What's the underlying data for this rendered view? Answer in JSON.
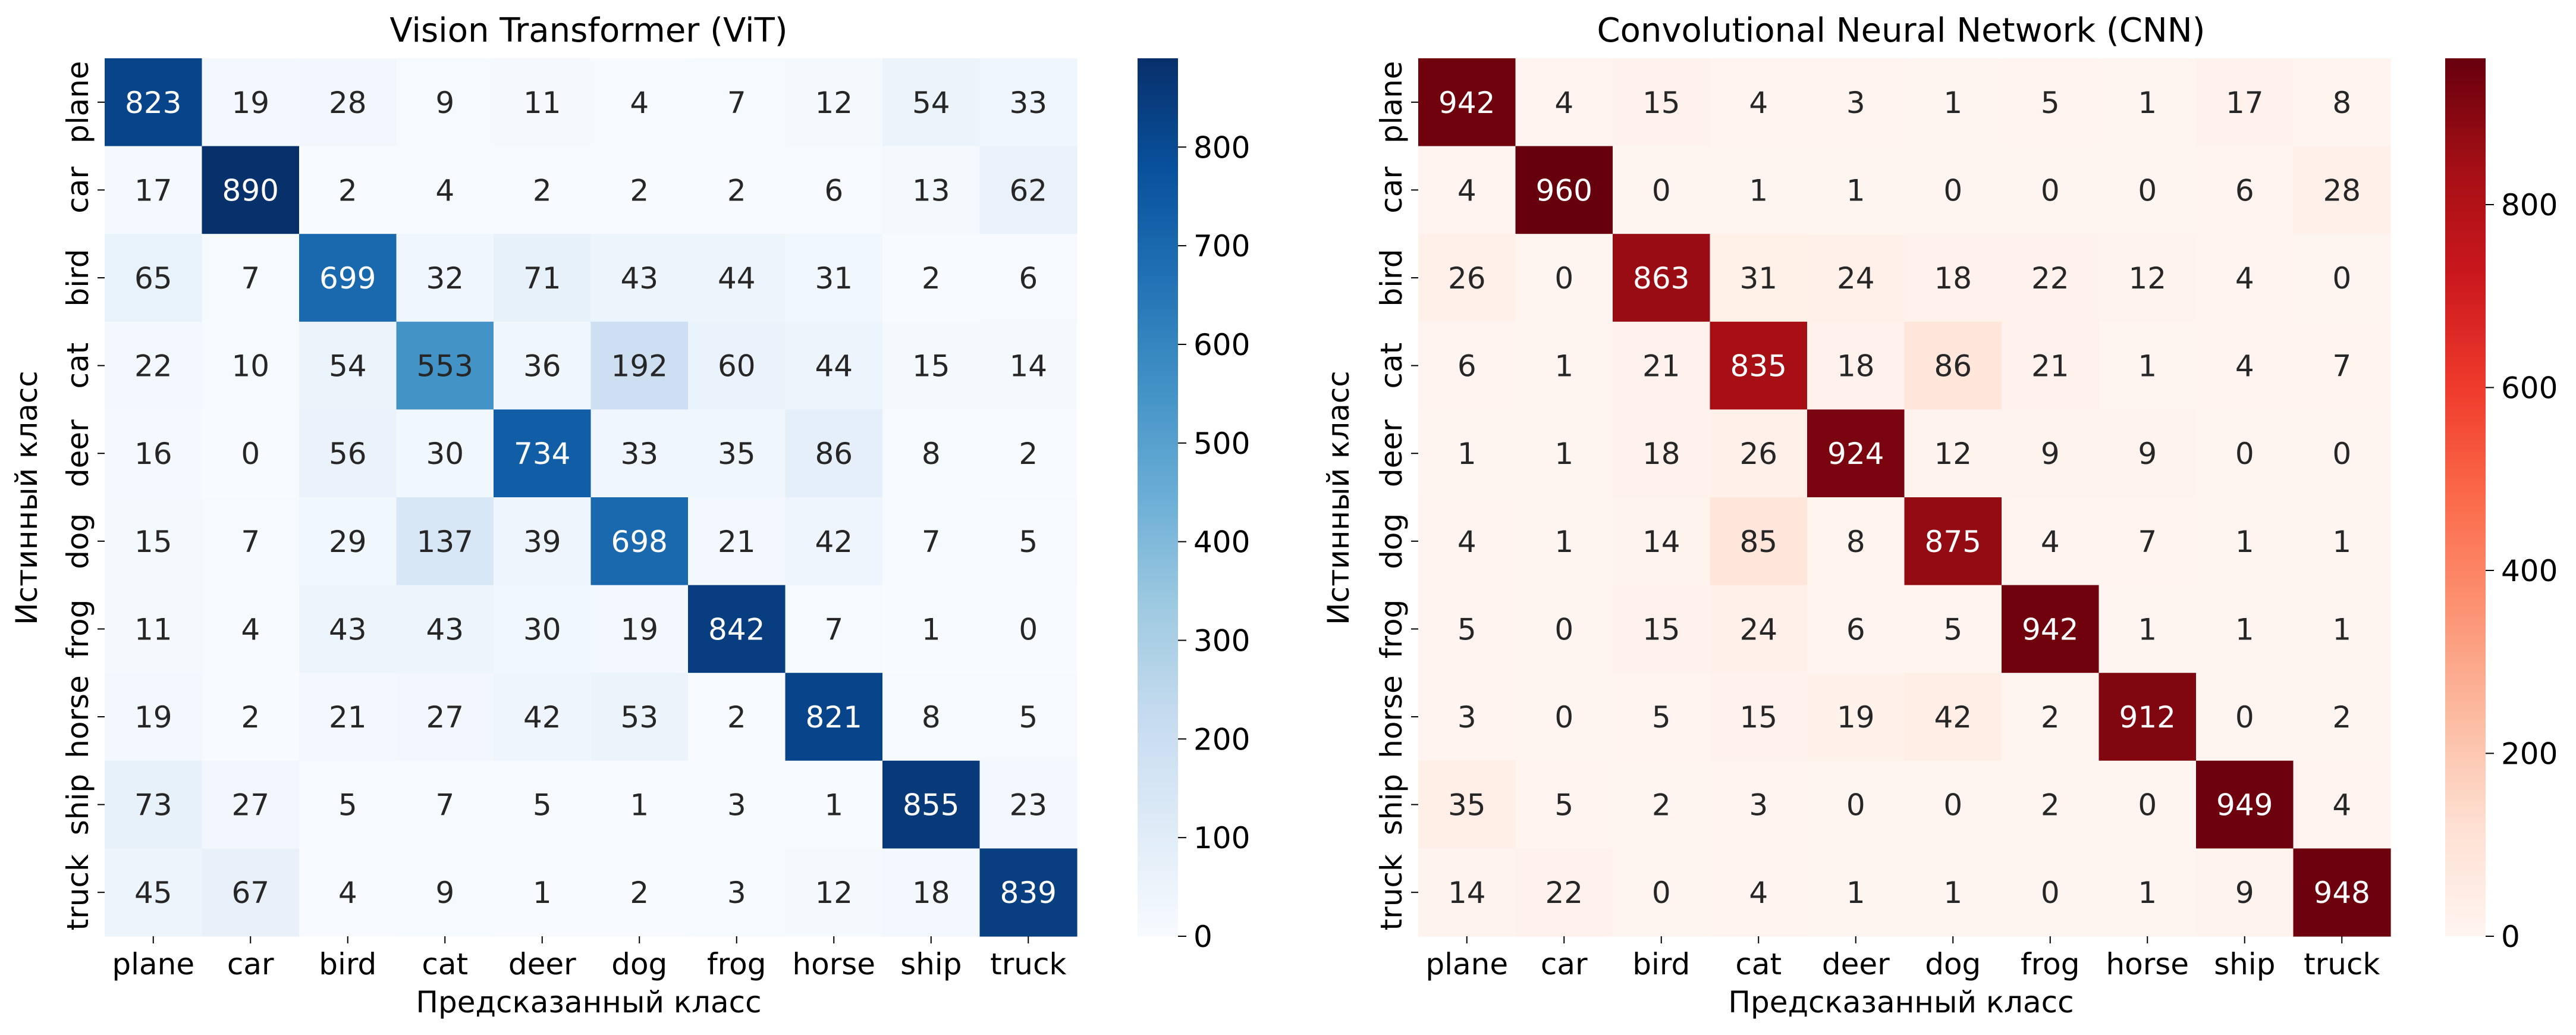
{
  "chart_data": [
    {
      "type": "heatmap",
      "title": "Vision Transformer (ViT)",
      "xlabel": "Предсказанный класс",
      "ylabel": "Истинный класс",
      "x_categories": [
        "plane",
        "car",
        "bird",
        "cat",
        "deer",
        "dog",
        "frog",
        "horse",
        "ship",
        "truck"
      ],
      "y_categories": [
        "plane",
        "car",
        "bird",
        "cat",
        "deer",
        "dog",
        "frog",
        "horse",
        "ship",
        "truck"
      ],
      "values": [
        [
          823,
          19,
          28,
          9,
          11,
          4,
          7,
          12,
          54,
          33
        ],
        [
          17,
          890,
          2,
          4,
          2,
          2,
          2,
          6,
          13,
          62
        ],
        [
          65,
          7,
          699,
          32,
          71,
          43,
          44,
          31,
          2,
          6
        ],
        [
          22,
          10,
          54,
          553,
          36,
          192,
          60,
          44,
          15,
          14
        ],
        [
          16,
          0,
          56,
          30,
          734,
          33,
          35,
          86,
          8,
          2
        ],
        [
          15,
          7,
          29,
          137,
          39,
          698,
          21,
          42,
          7,
          5
        ],
        [
          11,
          4,
          43,
          43,
          30,
          19,
          842,
          7,
          1,
          0
        ],
        [
          19,
          2,
          21,
          27,
          42,
          53,
          2,
          821,
          8,
          5
        ],
        [
          73,
          27,
          5,
          7,
          5,
          1,
          3,
          1,
          855,
          23
        ],
        [
          45,
          67,
          4,
          9,
          1,
          2,
          3,
          12,
          18,
          839
        ]
      ],
      "colormap": "Blues",
      "color_range": [
        0,
        890
      ],
      "colorbar_ticks": [
        0,
        100,
        200,
        300,
        400,
        500,
        600,
        700,
        800
      ]
    },
    {
      "type": "heatmap",
      "title": "Convolutional Neural Network (CNN)",
      "xlabel": "Предсказанный класс",
      "ylabel": "Истинный класс",
      "x_categories": [
        "plane",
        "car",
        "bird",
        "cat",
        "deer",
        "dog",
        "frog",
        "horse",
        "ship",
        "truck"
      ],
      "y_categories": [
        "plane",
        "car",
        "bird",
        "cat",
        "deer",
        "dog",
        "frog",
        "horse",
        "ship",
        "truck"
      ],
      "values": [
        [
          942,
          4,
          15,
          4,
          3,
          1,
          5,
          1,
          17,
          8
        ],
        [
          4,
          960,
          0,
          1,
          1,
          0,
          0,
          0,
          6,
          28
        ],
        [
          26,
          0,
          863,
          31,
          24,
          18,
          22,
          12,
          4,
          0
        ],
        [
          6,
          1,
          21,
          835,
          18,
          86,
          21,
          1,
          4,
          7
        ],
        [
          1,
          1,
          18,
          26,
          924,
          12,
          9,
          9,
          0,
          0
        ],
        [
          4,
          1,
          14,
          85,
          8,
          875,
          4,
          7,
          1,
          1
        ],
        [
          5,
          0,
          15,
          24,
          6,
          5,
          942,
          1,
          1,
          1
        ],
        [
          3,
          0,
          5,
          15,
          19,
          42,
          2,
          912,
          0,
          2
        ],
        [
          35,
          5,
          2,
          3,
          0,
          0,
          2,
          0,
          949,
          4
        ],
        [
          14,
          22,
          0,
          4,
          1,
          1,
          0,
          1,
          9,
          948
        ]
      ],
      "colormap": "Reds",
      "color_range": [
        0,
        960
      ],
      "colorbar_ticks": [
        0,
        200,
        400,
        600,
        800
      ]
    }
  ]
}
